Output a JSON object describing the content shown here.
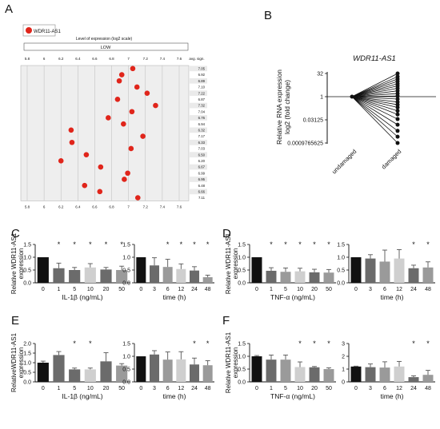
{
  "colors": {
    "dot": "#e0251b",
    "black": "#111111",
    "dgray": "#6b6b6b",
    "mgray": "#9a9a9a",
    "lgray": "#cfcfcf",
    "panel": "#eeeeee"
  },
  "panel_letters": [
    "A",
    "B",
    "C",
    "D",
    "E",
    "F"
  ],
  "chart_data": [
    {
      "panel": "A",
      "type": "scatter",
      "legend": "WDR11-AS1",
      "title": "Level of expression (log2 scale)",
      "band_label": "LOW",
      "col_header": "avg. sign.",
      "ticks": [
        "5.8",
        "6",
        "6.2",
        "6.4",
        "6.6",
        "6.8",
        "7",
        "7.2",
        "7.4",
        "7.6"
      ],
      "xlim": [
        5.8,
        7.6
      ],
      "values": [
        7.05,
        6.92,
        6.89,
        7.1,
        7.22,
        6.87,
        7.32,
        7.04,
        6.76,
        6.94,
        6.32,
        7.17,
        6.33,
        7.03,
        6.5,
        6.2,
        6.67,
        6.99,
        6.95,
        6.48,
        6.66,
        7.11
      ],
      "avg_sign": [
        "7.05",
        "6.92",
        "6.89",
        "7.10",
        "7.22",
        "6.87",
        "7.32",
        "7.04",
        "6.76",
        "6.94",
        "6.32",
        "7.17",
        "6.33",
        "7.03",
        "6.50",
        "6.20",
        "6.67",
        "6.99",
        "6.95",
        "6.48",
        "6.66",
        "7.11"
      ]
    },
    {
      "panel": "B",
      "type": "scatter",
      "title": "WDR11-AS1",
      "ylabel": [
        "Relative RNA expression",
        "log2 (fold change)"
      ],
      "yticks": [
        "32",
        "1",
        "0.03125",
        "0.0009765625"
      ],
      "categories": [
        "undamaged",
        "damaged"
      ],
      "undamaged": 1,
      "damaged": [
        32,
        20,
        14,
        10,
        7,
        5,
        3.5,
        2.4,
        1.6,
        1.1,
        0.7,
        0.45,
        0.3,
        0.2,
        0.12,
        0.07,
        0.035,
        0.015,
        0.006,
        0.0025,
        0.0009765625
      ]
    },
    {
      "panel": "C1",
      "type": "bar",
      "categories": [
        "0",
        "1",
        "5",
        "10",
        "20",
        "50"
      ],
      "values": [
        1.0,
        0.57,
        0.5,
        0.6,
        0.52,
        0.5
      ],
      "errors": [
        0,
        0.2,
        0.1,
        0.15,
        0.08,
        0.15
      ],
      "stars": [
        false,
        true,
        true,
        true,
        true,
        true
      ],
      "fills": [
        "black",
        "dgray",
        "dgray",
        "lgray",
        "dgray",
        "mgray"
      ],
      "xlabel": "IL-1β (ng/mL)",
      "ylabel": [
        "Relative WDR11-AS1",
        "expression"
      ],
      "yticks": [
        "0.0",
        "0.5",
        "1.0",
        "1.5"
      ],
      "ylim": [
        0,
        1.5
      ]
    },
    {
      "panel": "C2",
      "type": "bar",
      "categories": [
        "0",
        "3",
        "6",
        "12",
        "24",
        "48"
      ],
      "values": [
        1.0,
        0.68,
        0.62,
        0.54,
        0.48,
        0.22
      ],
      "errors": [
        0,
        0.3,
        0.3,
        0.2,
        0.15,
        0.08
      ],
      "stars": [
        false,
        false,
        true,
        true,
        true,
        true
      ],
      "fills": [
        "black",
        "dgray",
        "mgray",
        "lgray",
        "dgray",
        "mgray"
      ],
      "xlabel": "time (h)",
      "yticks": [
        "0.0",
        "0.5",
        "1.0",
        "1.5"
      ],
      "ylim": [
        0,
        1.5
      ]
    },
    {
      "panel": "D1",
      "type": "bar",
      "categories": [
        "0",
        "1",
        "5",
        "10",
        "20",
        "50"
      ],
      "values": [
        1.0,
        0.47,
        0.43,
        0.45,
        0.41,
        0.4
      ],
      "errors": [
        0,
        0.12,
        0.15,
        0.12,
        0.12,
        0.12
      ],
      "stars": [
        false,
        true,
        true,
        true,
        true,
        true
      ],
      "fills": [
        "black",
        "dgray",
        "mgray",
        "lgray",
        "dgray",
        "mgray"
      ],
      "xlabel": "TNF-α (ng/mL)",
      "ylabel": [
        "Relative WDR11-AS1",
        "expression"
      ],
      "yticks": [
        "0.0",
        "0.5",
        "1.0",
        "1.5"
      ],
      "ylim": [
        0,
        1.5
      ]
    },
    {
      "panel": "D2",
      "type": "bar",
      "categories": [
        "0",
        "3",
        "6",
        "12",
        "24",
        "48"
      ],
      "values": [
        1.0,
        0.95,
        0.83,
        0.95,
        0.57,
        0.6
      ],
      "errors": [
        0,
        0.15,
        0.45,
        0.35,
        0.12,
        0.22
      ],
      "stars": [
        false,
        false,
        false,
        false,
        true,
        true
      ],
      "fills": [
        "black",
        "dgray",
        "mgray",
        "lgray",
        "dgray",
        "mgray"
      ],
      "xlabel": "time (h)",
      "yticks": [
        "0.0",
        "0.5",
        "1.0",
        "1.5"
      ],
      "ylim": [
        0,
        1.5
      ]
    },
    {
      "panel": "E1",
      "type": "bar",
      "categories": [
        "0",
        "1",
        "5",
        "10",
        "20",
        "50"
      ],
      "values": [
        1.0,
        1.4,
        0.65,
        0.65,
        1.07,
        0.85
      ],
      "errors": [
        0.08,
        0.18,
        0.07,
        0.07,
        0.45,
        0.1
      ],
      "stars": [
        false,
        false,
        true,
        true,
        false,
        false
      ],
      "fills": [
        "black",
        "dgray",
        "dgray",
        "lgray",
        "dgray",
        "mgray"
      ],
      "xlabel": "IL-1β (ng/mL)",
      "ylabel": [
        "RelativeWDR11-AS1",
        "expression"
      ],
      "yticks": [
        "0.0",
        "0.5",
        "1.0",
        "1.5",
        "2.0"
      ],
      "ylim": [
        0,
        2.0
      ]
    },
    {
      "panel": "E2",
      "type": "bar",
      "categories": [
        "0",
        "3",
        "6",
        "12",
        "24",
        "48"
      ],
      "values": [
        1.0,
        1.07,
        0.87,
        0.88,
        0.68,
        0.65
      ],
      "errors": [
        0,
        0.15,
        0.3,
        0.3,
        0.25,
        0.18
      ],
      "stars": [
        false,
        false,
        false,
        false,
        true,
        true
      ],
      "fills": [
        "black",
        "dgray",
        "mgray",
        "lgray",
        "dgray",
        "mgray"
      ],
      "xlabel": "time (h)",
      "yticks": [
        "0.0",
        "0.5",
        "1.0",
        "1.5"
      ],
      "ylim": [
        0,
        1.5
      ]
    },
    {
      "panel": "F1",
      "type": "bar",
      "categories": [
        "0",
        "1",
        "5",
        "10",
        "20",
        "50"
      ],
      "values": [
        1.0,
        0.87,
        0.87,
        0.58,
        0.57,
        0.5
      ],
      "errors": [
        0.03,
        0.18,
        0.18,
        0.2,
        0.03,
        0.05
      ],
      "stars": [
        false,
        false,
        false,
        true,
        true,
        true
      ],
      "fills": [
        "black",
        "dgray",
        "mgray",
        "lgray",
        "dgray",
        "mgray"
      ],
      "xlabel": "TNF-α (ng/mL)",
      "ylabel": [
        "Relative WDR11-AS1",
        "expression"
      ],
      "yticks": [
        "0.0",
        "0.5",
        "1.0",
        "1.5"
      ],
      "ylim": [
        0,
        1.5
      ]
    },
    {
      "panel": "F2",
      "type": "bar",
      "categories": [
        "0",
        "3",
        "6",
        "12",
        "24",
        "48"
      ],
      "values": [
        1.2,
        1.15,
        1.12,
        1.2,
        0.37,
        0.55
      ],
      "errors": [
        0.03,
        0.25,
        0.45,
        0.4,
        0.1,
        0.35
      ],
      "stars": [
        false,
        false,
        false,
        false,
        true,
        true
      ],
      "fills": [
        "black",
        "dgray",
        "mgray",
        "lgray",
        "dgray",
        "mgray"
      ],
      "xlabel": "time (h)",
      "yticks": [
        "0",
        "1",
        "2",
        "3"
      ],
      "ylim": [
        0,
        3
      ]
    }
  ]
}
